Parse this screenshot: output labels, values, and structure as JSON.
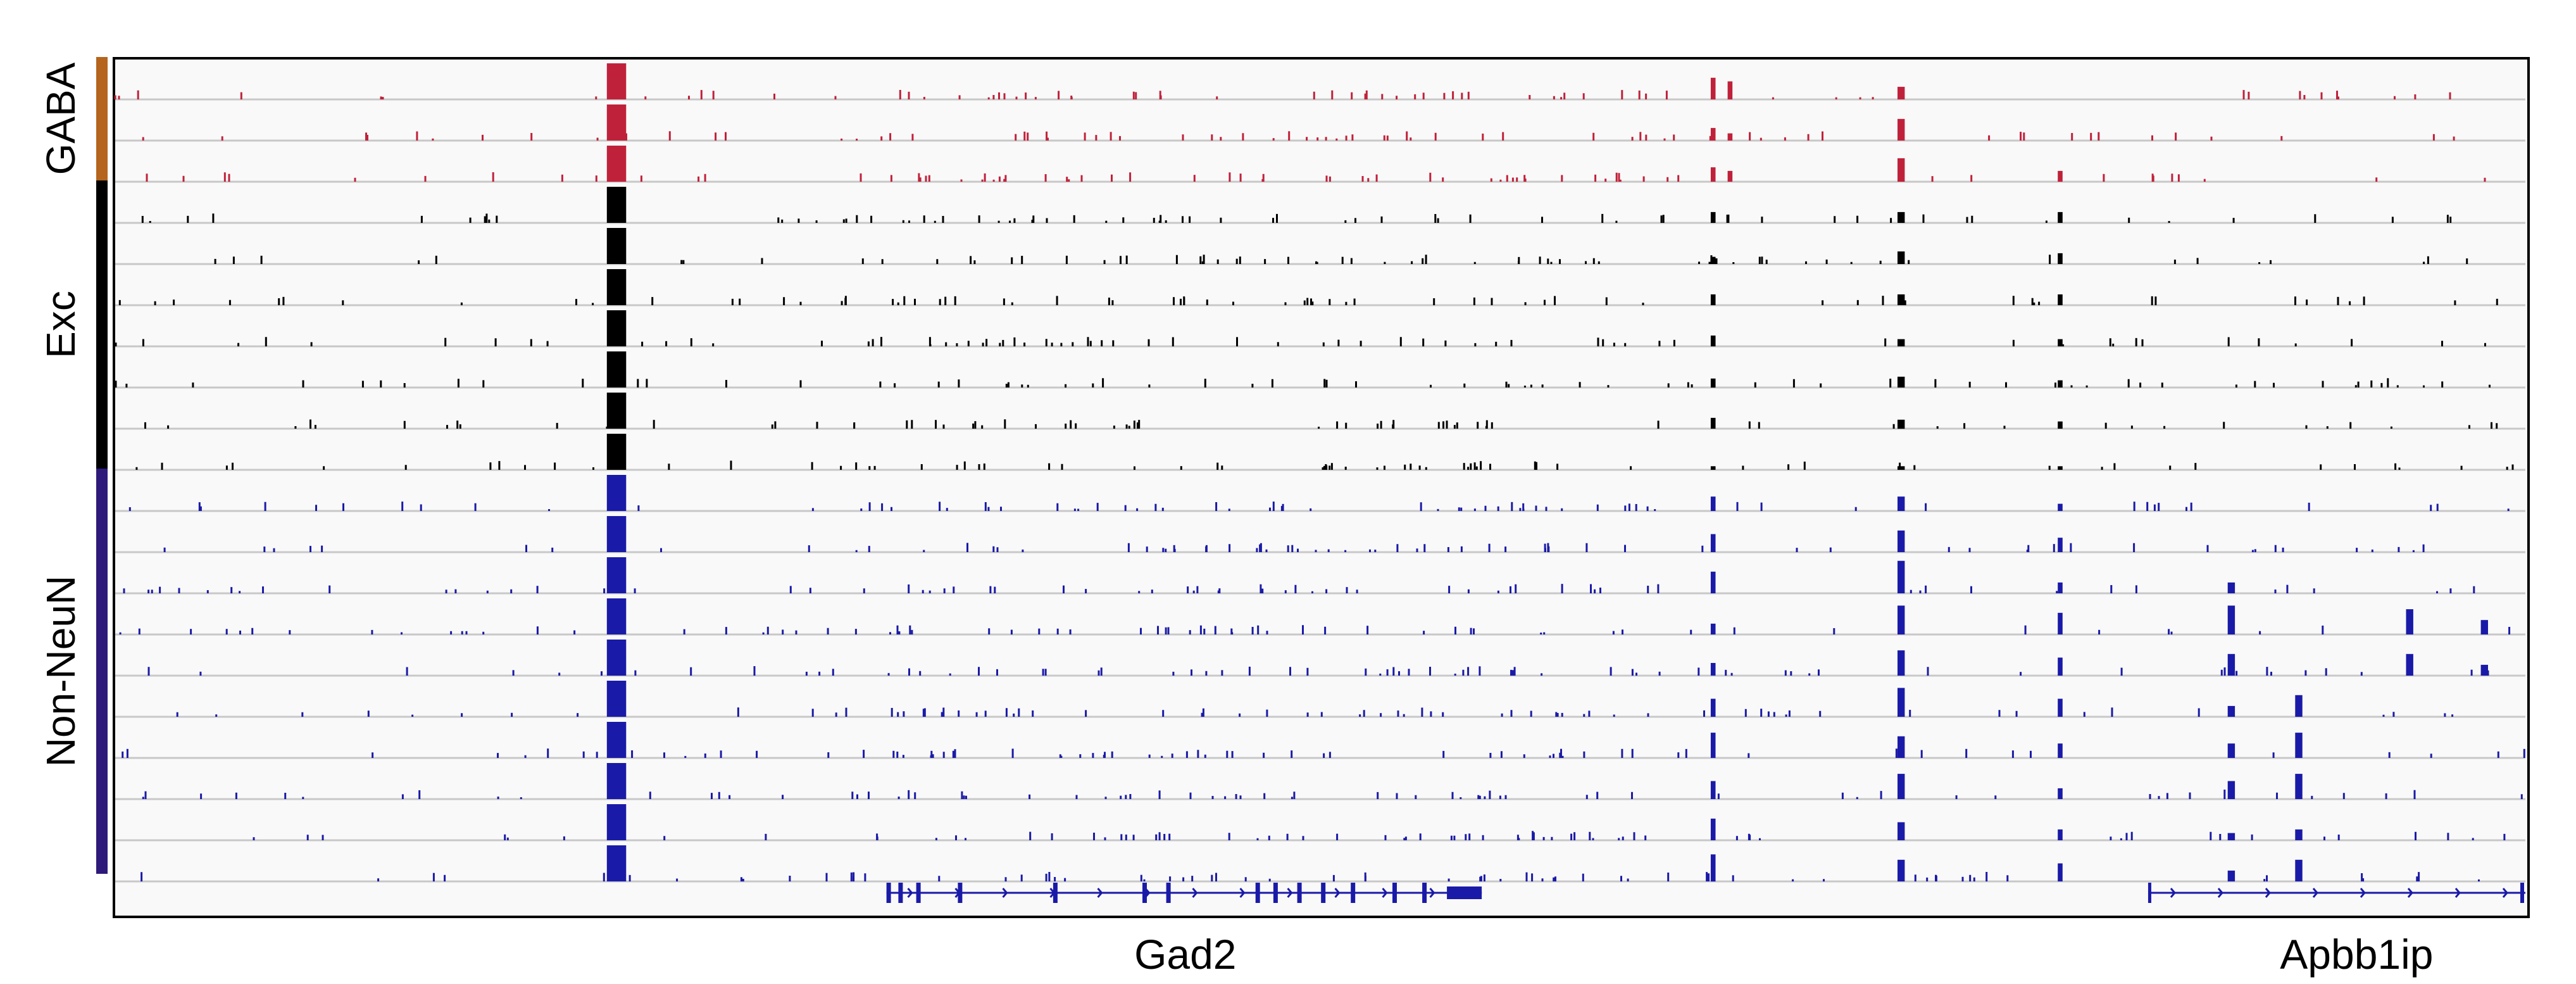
{
  "chart_data": {
    "type": "genome-track",
    "groups": [
      {
        "label": "GABA",
        "color": "#b5651d",
        "signal_color": "#c0213a",
        "tracks": 3
      },
      {
        "label": "Exc",
        "color": "#000000",
        "signal_color": "#000000",
        "tracks": 7
      },
      {
        "label": "Non-NeuN",
        "color": "#2e1a7a",
        "signal_color": "#1a1aa8",
        "tracks": 10
      }
    ],
    "x_range": [
      0,
      1000
    ],
    "peaks": [
      {
        "x": 208,
        "width": 8,
        "tracks": [
          1,
          1,
          1,
          1,
          1,
          1,
          1,
          1,
          1,
          1,
          1,
          1,
          1,
          1,
          1,
          1,
          1,
          1,
          1,
          1
        ]
      },
      {
        "x": 663,
        "width": 2,
        "tracks": [
          0.6,
          0.35,
          0.4,
          0.3,
          0.2,
          0.3,
          0.3,
          0.25,
          0.3,
          0.1,
          0.4,
          0.5,
          0.6,
          0.3,
          0.35,
          0.5,
          0.7,
          0.5,
          0.6,
          0.75
        ]
      },
      {
        "x": 670,
        "width": 2,
        "tracks": [
          0.5,
          0.2,
          0.3,
          0,
          0,
          0,
          0,
          0,
          0,
          0,
          0,
          0,
          0,
          0,
          0,
          0,
          0,
          0,
          0,
          0
        ]
      },
      {
        "x": 741,
        "width": 3,
        "tracks": [
          0.35,
          0.6,
          0.65,
          0.3,
          0.35,
          0.3,
          0.2,
          0.3,
          0.25,
          0.1,
          0.4,
          0.6,
          0.9,
          0.8,
          0.7,
          0.8,
          0.6,
          0.7,
          0.5,
          0.6
        ]
      },
      {
        "x": 807,
        "width": 2,
        "tracks": [
          0,
          0,
          0.3,
          0.3,
          0.3,
          0.3,
          0.2,
          0.2,
          0.2,
          0.1,
          0.2,
          0.4,
          0.3,
          0.6,
          0.5,
          0.5,
          0.4,
          0.3,
          0.3,
          0.5
        ]
      },
      {
        "x": 878,
        "width": 3,
        "tracks": [
          0,
          0,
          0,
          0,
          0,
          0,
          0,
          0,
          0,
          0,
          0,
          0,
          0.3,
          0.8,
          0.6,
          0.3,
          0.4,
          0.5,
          0.2,
          0.3
        ]
      },
      {
        "x": 906,
        "width": 3,
        "tracks": [
          0,
          0,
          0,
          0,
          0,
          0,
          0,
          0,
          0,
          0,
          0,
          0,
          0,
          0,
          0,
          0.6,
          0.7,
          0.7,
          0.3,
          0.6
        ]
      },
      {
        "x": 952,
        "width": 3,
        "tracks": [
          0,
          0,
          0,
          0,
          0,
          0,
          0,
          0,
          0,
          0,
          0,
          0,
          0,
          0.7,
          0.6,
          0,
          0,
          0,
          0,
          0
        ]
      },
      {
        "x": 983,
        "width": 3,
        "tracks": [
          0,
          0,
          0,
          0,
          0,
          0,
          0,
          0,
          0,
          0,
          0,
          0,
          0,
          0.4,
          0.3,
          0,
          0,
          0,
          0,
          0
        ]
      }
    ],
    "genes": [
      {
        "name": "Gad2",
        "start": 320,
        "end": 567,
        "strand": "+",
        "label_x": 444
      },
      {
        "name": "Apbb1ip",
        "start": 844,
        "end": 1000,
        "strand": "+",
        "label_x": 930
      }
    ]
  }
}
